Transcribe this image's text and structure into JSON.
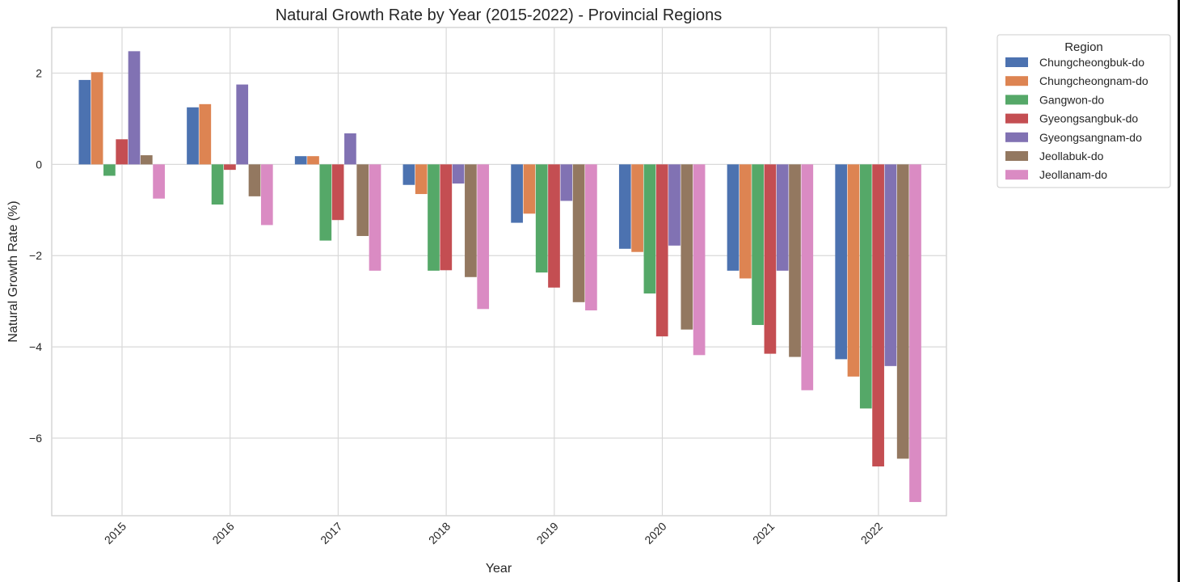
{
  "chart_data": {
    "type": "bar",
    "title": "Natural Growth Rate by Year (2015-2022) - Provincial Regions",
    "xlabel": "Year",
    "ylabel": "Natural Growth Rate (%)",
    "ylim": [
      -7.7,
      3.0
    ],
    "yticks": [
      2,
      0,
      -2,
      -4,
      -6
    ],
    "ytick_labels": [
      "2",
      "0",
      "−2",
      "−4",
      "−6"
    ],
    "grid": true,
    "legend": {
      "title": "Region",
      "placement": "outside-top-right"
    },
    "categories": [
      "2015",
      "2016",
      "2017",
      "2018",
      "2019",
      "2020",
      "2021",
      "2022"
    ],
    "series": [
      {
        "name": "Chungcheongbuk-do",
        "color": "#4c72b0",
        "values": [
          1.85,
          1.25,
          0.18,
          -0.45,
          -1.28,
          -1.85,
          -2.33,
          -4.27
        ]
      },
      {
        "name": "Chungcheongnam-do",
        "color": "#dd8452",
        "values": [
          2.02,
          1.32,
          0.18,
          -0.65,
          -1.08,
          -1.92,
          -2.5,
          -4.65
        ]
      },
      {
        "name": "Gangwon-do",
        "color": "#55a868",
        "values": [
          -0.25,
          -0.88,
          -1.67,
          -2.33,
          -2.37,
          -2.83,
          -3.52,
          -5.35
        ]
      },
      {
        "name": "Gyeongsangbuk-do",
        "color": "#c44e52",
        "values": [
          0.55,
          -0.12,
          -1.22,
          -2.32,
          -2.7,
          -3.77,
          -4.15,
          -6.62
        ]
      },
      {
        "name": "Gyeongsangnam-do",
        "color": "#8172b3",
        "values": [
          2.48,
          1.75,
          0.68,
          -0.42,
          -0.8,
          -1.78,
          -2.33,
          -4.42
        ]
      },
      {
        "name": "Jeollabuk-do",
        "color": "#937860",
        "values": [
          0.2,
          -0.7,
          -1.57,
          -2.47,
          -3.02,
          -3.62,
          -4.22,
          -6.45
        ]
      },
      {
        "name": "Jeollanam-do",
        "color": "#da8bc3",
        "values": [
          -0.75,
          -1.33,
          -2.33,
          -3.17,
          -3.2,
          -4.18,
          -4.95,
          -7.4
        ]
      }
    ]
  }
}
